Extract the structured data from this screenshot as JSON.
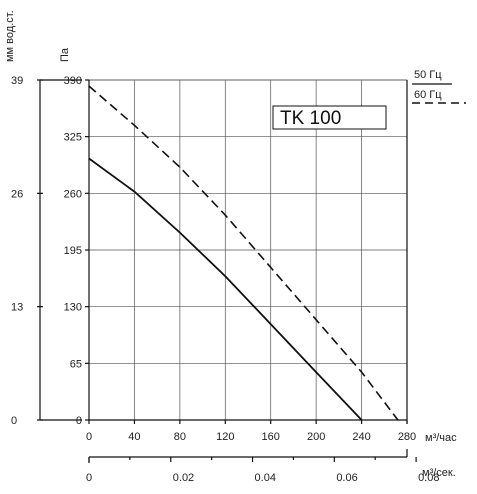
{
  "chart_data": {
    "type": "line",
    "title": "TK 100",
    "x": [
      0,
      40,
      80,
      120,
      160,
      200,
      240,
      280
    ],
    "x_ticks": [
      "0",
      "40",
      "80",
      "120",
      "160",
      "200",
      "240",
      "280"
    ],
    "xlabel": "м³/час",
    "xlim": [
      0,
      280
    ],
    "x2_ticks": [
      "0",
      "0.02",
      "0.04",
      "0.06",
      "0.08"
    ],
    "x2_values": [
      0,
      0.02,
      0.04,
      0.06,
      0.08
    ],
    "x2label": "м³/сек.",
    "y_ticks": [
      "0",
      "65",
      "130",
      "195",
      "260",
      "325",
      "390"
    ],
    "ylabel": "Па",
    "ylim": [
      0,
      390
    ],
    "y2_ticks": [
      "0",
      "13",
      "26",
      "39"
    ],
    "y2label": "мм вод.ст.",
    "grid": true,
    "legend_position": "top-right",
    "series": [
      {
        "name": "50 Гц",
        "style": "solid",
        "points": [
          [
            0,
            300
          ],
          [
            40,
            262
          ],
          [
            80,
            215
          ],
          [
            120,
            165
          ],
          [
            160,
            110
          ],
          [
            200,
            55
          ],
          [
            240,
            0
          ]
        ]
      },
      {
        "name": "60 Гц",
        "style": "dashed",
        "points": [
          [
            0,
            383
          ],
          [
            40,
            338
          ],
          [
            80,
            290
          ],
          [
            120,
            235
          ],
          [
            160,
            175
          ],
          [
            200,
            115
          ],
          [
            240,
            55
          ],
          [
            272,
            0
          ]
        ]
      }
    ]
  },
  "colors": {
    "line": "#111111",
    "grid": "#555555",
    "background": "#ffffff"
  }
}
